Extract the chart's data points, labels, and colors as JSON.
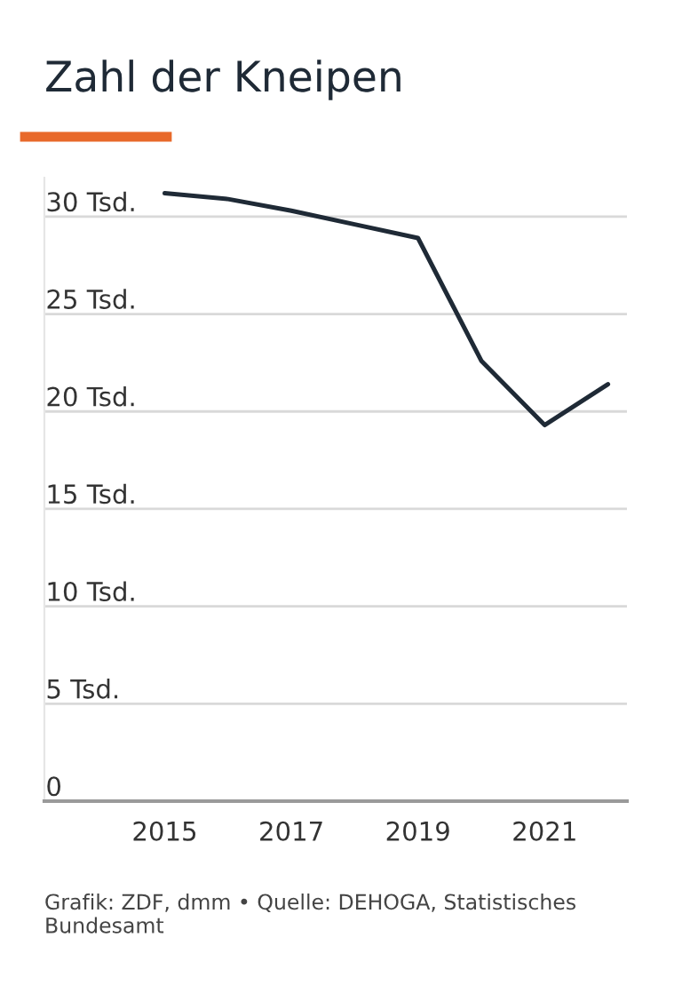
{
  "chart_data": {
    "type": "line",
    "title": "Zahl der Kneipen",
    "x": [
      2015,
      2016,
      2017,
      2018,
      2019,
      2020,
      2021,
      2022
    ],
    "series": [
      {
        "color": "#1f2a36",
        "values": [
          31.2,
          30.9,
          30.3,
          29.6,
          28.9,
          22.6,
          19.3,
          21.4
        ]
      }
    ],
    "xlim": [
      2013.1,
      2022.3
    ],
    "xticks": [
      2015,
      2017,
      2019,
      2021
    ],
    "ylim": [
      0,
      32
    ],
    "yticks": [
      {
        "value": 0,
        "label": "0"
      },
      {
        "value": 5,
        "label": "5 Tsd."
      },
      {
        "value": 10,
        "label": "10 Tsd."
      },
      {
        "value": 15,
        "label": "15 Tsd."
      },
      {
        "value": 20,
        "label": "20 Tsd."
      },
      {
        "value": 25,
        "label": "25 Tsd."
      },
      {
        "value": 30,
        "label": "30 Tsd."
      }
    ],
    "grid": "y",
    "marker": "none",
    "line_style": "solid",
    "annotations": [
      "Grafik: ZDF, dmm • Quelle: DEHOGA, Statistisches Bundesamt"
    ]
  }
}
